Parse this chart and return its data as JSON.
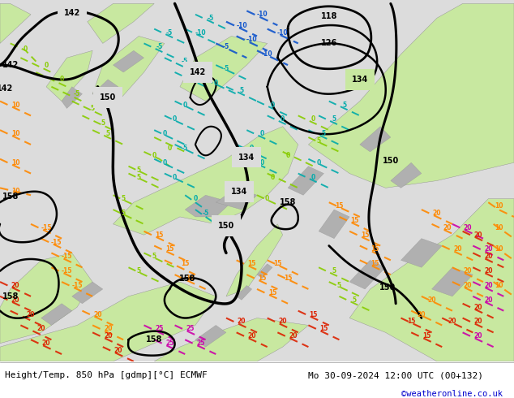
{
  "title_left": "Height/Temp. 850 hPa [gdmp][°C] ECMWF",
  "title_right": "Mo 30-09-2024 12:00 UTC (00+132)",
  "credit": "©weatheronline.co.uk",
  "bg_color": "#e0e0e0",
  "land_light_green": "#c8e8a0",
  "land_gray": "#b0b0b0",
  "sea_color": "#dcdcdc",
  "footer_bg": "#ffffff",
  "footer_text_color": "#000000",
  "credit_color": "#0000cc",
  "figsize": [
    6.34,
    4.9
  ],
  "dpi": 100
}
